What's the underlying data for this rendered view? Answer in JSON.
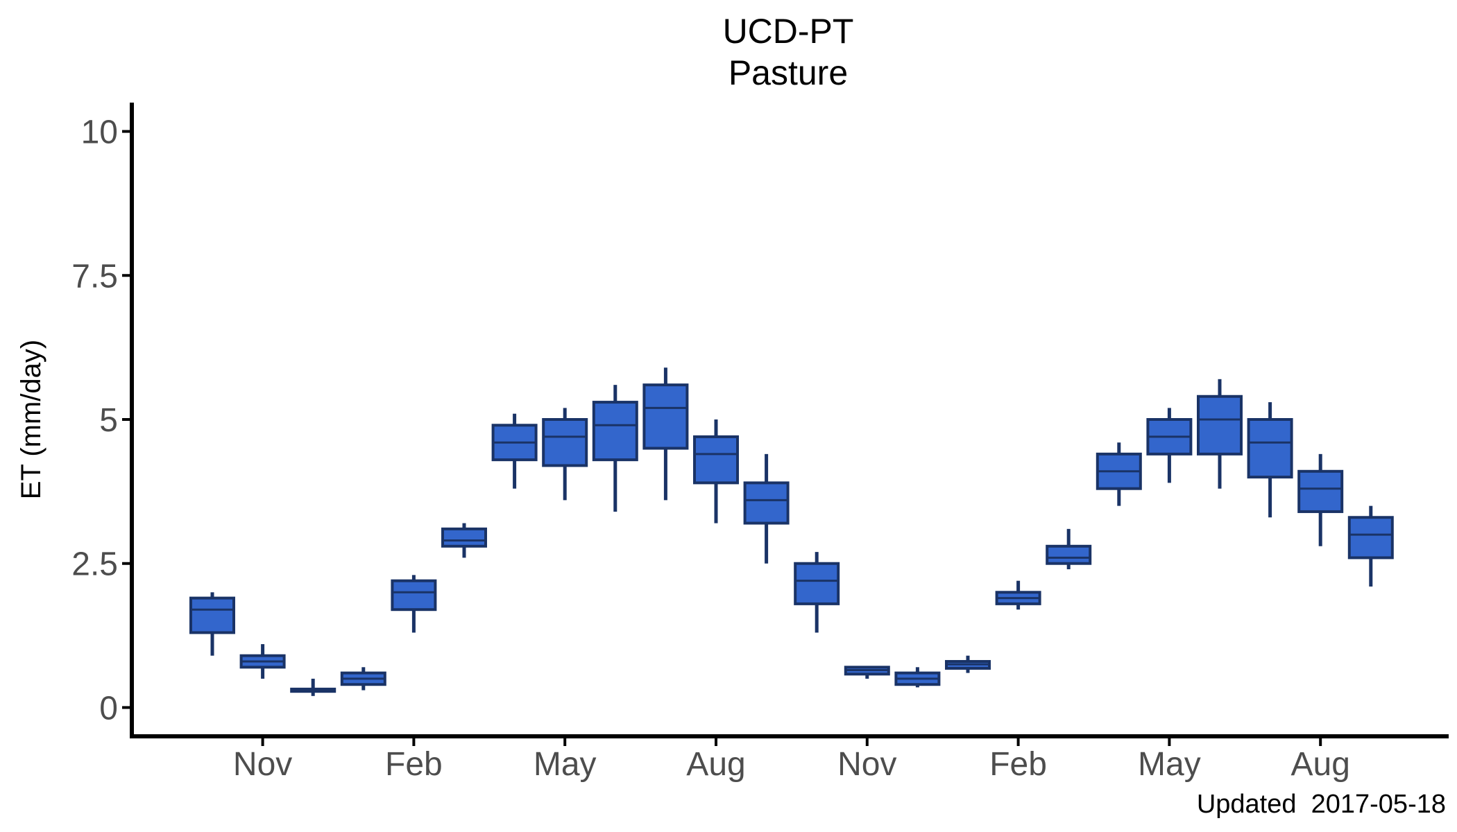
{
  "chart_data": {
    "type": "boxplot",
    "title": "UCD-PT",
    "subtitle": "Pasture",
    "ylabel": "ET (mm/day)",
    "xlabel": "",
    "ylim": [
      -0.5,
      10.5
    ],
    "yticks": [
      0,
      2.5,
      5,
      7.5,
      10
    ],
    "ytick_labels": [
      "0",
      "2.5",
      "5",
      "7.5",
      "10"
    ],
    "xticks": [
      {
        "label": "Nov",
        "index": 1
      },
      {
        "label": "Feb",
        "index": 4
      },
      {
        "label": "May",
        "index": 7
      },
      {
        "label": "Aug",
        "index": 10
      },
      {
        "label": "Nov",
        "index": 13
      },
      {
        "label": "Feb",
        "index": 16
      },
      {
        "label": "May",
        "index": 19
      },
      {
        "label": "Aug",
        "index": 22
      }
    ],
    "caption": "Updated  2017-05-18",
    "grid": false,
    "colors": {
      "box_fill": "#3366cc",
      "box_edge": "#1a3366",
      "axis": "#000000"
    },
    "boxes": [
      {
        "month": "2015-10",
        "min": 0.9,
        "q1": 1.3,
        "median": 1.7,
        "q3": 1.9,
        "max": 2.0
      },
      {
        "month": "2015-11",
        "min": 0.5,
        "q1": 0.7,
        "median": 0.8,
        "q3": 0.9,
        "max": 1.1
      },
      {
        "month": "2015-12",
        "min": 0.2,
        "q1": 0.28,
        "median": 0.3,
        "q3": 0.32,
        "max": 0.5
      },
      {
        "month": "2016-01",
        "min": 0.3,
        "q1": 0.4,
        "median": 0.5,
        "q3": 0.6,
        "max": 0.7
      },
      {
        "month": "2016-02",
        "min": 1.3,
        "q1": 1.7,
        "median": 2.0,
        "q3": 2.2,
        "max": 2.3
      },
      {
        "month": "2016-03",
        "min": 2.6,
        "q1": 2.8,
        "median": 2.9,
        "q3": 3.1,
        "max": 3.2
      },
      {
        "month": "2016-04",
        "min": 3.8,
        "q1": 4.3,
        "median": 4.6,
        "q3": 4.9,
        "max": 5.1
      },
      {
        "month": "2016-05",
        "min": 3.6,
        "q1": 4.2,
        "median": 4.7,
        "q3": 5.0,
        "max": 5.2
      },
      {
        "month": "2016-06",
        "min": 3.4,
        "q1": 4.3,
        "median": 4.9,
        "q3": 5.3,
        "max": 5.6
      },
      {
        "month": "2016-07",
        "min": 3.6,
        "q1": 4.5,
        "median": 5.2,
        "q3": 5.6,
        "max": 5.9
      },
      {
        "month": "2016-08",
        "min": 3.2,
        "q1": 3.9,
        "median": 4.4,
        "q3": 4.7,
        "max": 5.0
      },
      {
        "month": "2016-09",
        "min": 2.5,
        "q1": 3.2,
        "median": 3.6,
        "q3": 3.9,
        "max": 4.4
      },
      {
        "month": "2016-10",
        "min": 1.3,
        "q1": 1.8,
        "median": 2.2,
        "q3": 2.5,
        "max": 2.7
      },
      {
        "month": "2016-11",
        "min": 0.5,
        "q1": 0.58,
        "median": 0.65,
        "q3": 0.7,
        "max": 0.72
      },
      {
        "month": "2016-12",
        "min": 0.35,
        "q1": 0.4,
        "median": 0.5,
        "q3": 0.6,
        "max": 0.7
      },
      {
        "month": "2017-01",
        "min": 0.6,
        "q1": 0.68,
        "median": 0.75,
        "q3": 0.8,
        "max": 0.9
      },
      {
        "month": "2017-02",
        "min": 1.7,
        "q1": 1.8,
        "median": 1.9,
        "q3": 2.0,
        "max": 2.2
      },
      {
        "month": "2017-03",
        "min": 2.4,
        "q1": 2.5,
        "median": 2.6,
        "q3": 2.8,
        "max": 3.1
      },
      {
        "month": "2017-04",
        "min": 3.5,
        "q1": 3.8,
        "median": 4.1,
        "q3": 4.4,
        "max": 4.6
      },
      {
        "month": "2017-05",
        "min": 3.9,
        "q1": 4.4,
        "median": 4.7,
        "q3": 5.0,
        "max": 5.2
      },
      {
        "month": "2017-06",
        "min": 3.8,
        "q1": 4.4,
        "median": 5.0,
        "q3": 5.4,
        "max": 5.7
      },
      {
        "month": "2017-07",
        "min": 3.3,
        "q1": 4.0,
        "median": 4.6,
        "q3": 5.0,
        "max": 5.3
      },
      {
        "month": "2017-08",
        "min": 2.8,
        "q1": 3.4,
        "median": 3.8,
        "q3": 4.1,
        "max": 4.4
      },
      {
        "month": "2017-09",
        "min": 2.1,
        "q1": 2.6,
        "median": 3.0,
        "q3": 3.3,
        "max": 3.5
      }
    ]
  }
}
